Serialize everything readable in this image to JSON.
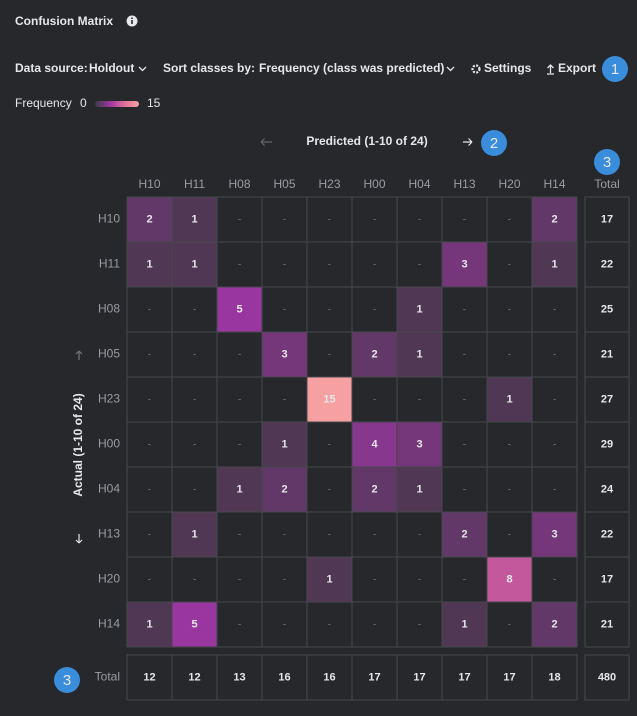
{
  "header": {
    "title": "Confusion Matrix"
  },
  "toolbar": {
    "data_source_label": "Data source:",
    "data_source": "Holdout",
    "sort_label": "Sort classes by:",
    "sort_value": "Frequency (class was predicted)",
    "settings": "Settings",
    "export": "Export"
  },
  "badges": [
    1,
    2,
    3,
    3
  ],
  "chart_data": {
    "type": "heatmap",
    "x_title": "Predicted (1-10 of 24)",
    "y_title": "Actual (1-10 of 24)",
    "x_categories": [
      "H10",
      "H11",
      "H08",
      "H05",
      "H23",
      "H00",
      "H04",
      "H13",
      "H20",
      "H14"
    ],
    "y_categories": [
      "H10",
      "H11",
      "H08",
      "H05",
      "H23",
      "H00",
      "H04",
      "H13",
      "H20",
      "H14"
    ],
    "values": [
      [
        2,
        1,
        null,
        null,
        null,
        null,
        null,
        null,
        null,
        2
      ],
      [
        1,
        1,
        null,
        null,
        null,
        null,
        null,
        3,
        null,
        1
      ],
      [
        null,
        null,
        5,
        null,
        null,
        null,
        1,
        null,
        null,
        null
      ],
      [
        null,
        null,
        null,
        3,
        null,
        2,
        1,
        null,
        null,
        null
      ],
      [
        null,
        null,
        null,
        null,
        15,
        null,
        null,
        null,
        1,
        null
      ],
      [
        null,
        null,
        null,
        1,
        null,
        4,
        3,
        null,
        null,
        null
      ],
      [
        null,
        null,
        1,
        2,
        null,
        2,
        1,
        null,
        null,
        null
      ],
      [
        null,
        1,
        null,
        null,
        null,
        null,
        null,
        2,
        null,
        3
      ],
      [
        null,
        null,
        null,
        null,
        1,
        null,
        null,
        null,
        8,
        null
      ],
      [
        1,
        5,
        null,
        null,
        null,
        null,
        null,
        1,
        null,
        2
      ]
    ],
    "empty_label": "-",
    "legend_title": "Frequency",
    "zlim": [
      0,
      15
    ],
    "colors": [
      "#3d3942",
      "#9a36a0",
      "#e06e9a",
      "#f7a0a2"
    ],
    "total_label": "Total",
    "row_totals": [
      17,
      22,
      25,
      21,
      27,
      29,
      24,
      22,
      17,
      21
    ],
    "column_totals": [
      12,
      12,
      13,
      16,
      16,
      17,
      17,
      17,
      17,
      18
    ],
    "grand_total": 480
  }
}
